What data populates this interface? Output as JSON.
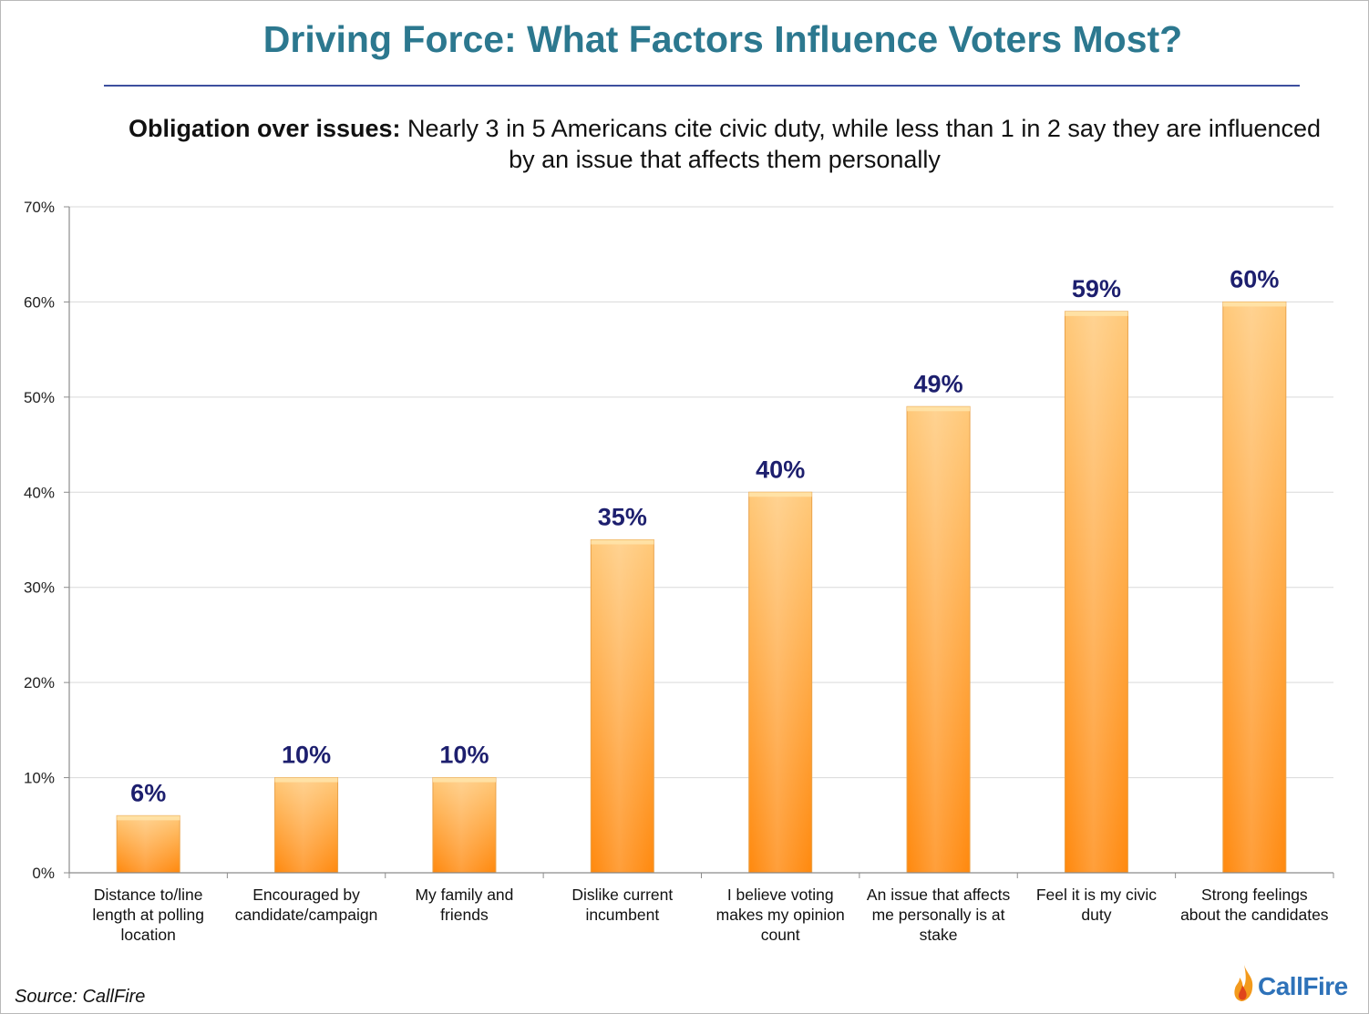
{
  "title": "Driving Force: What Factors Influence Voters Most?",
  "subtitle": {
    "lead": "Obligation over issues:",
    "rest": " Nearly 3 in 5 Americans cite civic duty, while less than 1 in 2 say they are influenced by an issue that affects them personally"
  },
  "source": "Source: CallFire",
  "logo": {
    "text": "CallFire",
    "icon": "flame-icon"
  },
  "colors": {
    "bar_top": "#ffc97a",
    "bar_bottom": "#ff8a10",
    "data_label": "#1d1f6e",
    "title": "#2c788f",
    "grid": "#d9d9d9"
  },
  "chart_data": {
    "type": "bar",
    "categories": [
      [
        "Distance to/line",
        "length at polling",
        "location"
      ],
      [
        "Encouraged by",
        "candidate/campaign"
      ],
      [
        "My family and",
        "friends"
      ],
      [
        "Dislike current",
        "incumbent"
      ],
      [
        "I believe voting",
        "makes my opinion",
        "count"
      ],
      [
        "An issue that affects",
        "me personally is at",
        "stake"
      ],
      [
        "Feel it is my civic",
        "duty"
      ],
      [
        "Strong feelings",
        "about the candidates"
      ]
    ],
    "values": [
      6,
      10,
      10,
      35,
      40,
      49,
      59,
      60
    ],
    "data_labels": [
      "6%",
      "10%",
      "10%",
      "35%",
      "40%",
      "49%",
      "59%",
      "60%"
    ],
    "yticks": [
      "0%",
      "10%",
      "20%",
      "30%",
      "40%",
      "50%",
      "60%",
      "70%"
    ],
    "ylim": [
      0,
      70
    ],
    "grid": true,
    "legend": "none"
  }
}
